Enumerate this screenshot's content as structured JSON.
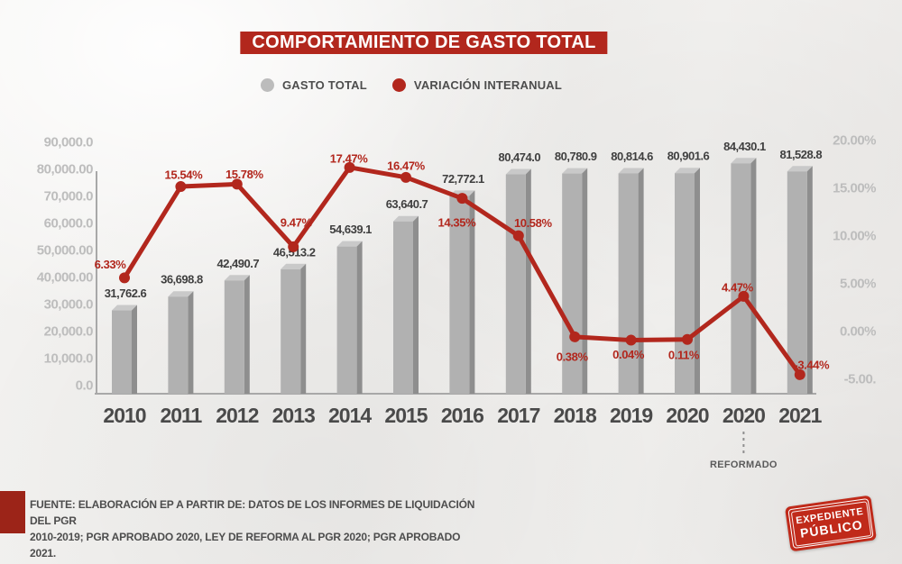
{
  "header": {
    "title": "COMPORTAMIENTO DE GASTO TOTAL",
    "title_bg": "#b2271d",
    "legend": [
      {
        "label": "GASTO TOTAL",
        "color": "#bcbcbc"
      },
      {
        "label": "VARIACIÓN INTERANUAL",
        "color": "#b2271d"
      }
    ]
  },
  "chart_data": {
    "type": "bar+line",
    "title": "COMPORTAMIENTO DE GASTO TOTAL",
    "categories": [
      "2010",
      "2011",
      "2012",
      "2013",
      "2014",
      "2015",
      "2016",
      "2017",
      "2018",
      "2019",
      "2020",
      "2020",
      "2021"
    ],
    "category_note": {
      "category_index": 11,
      "label": "REFORMADO",
      "color": "#5a5a5a"
    },
    "series": [
      {
        "name": "GASTO TOTAL",
        "type": "bar",
        "axis": "left",
        "values": [
          31762.6,
          36698.8,
          42490.7,
          46513.2,
          54639.1,
          63640.7,
          72772.1,
          80474.0,
          80780.9,
          80814.6,
          80901.6,
          84430.1,
          81528.8
        ],
        "value_labels": [
          "31,762.6",
          "36,698.8",
          "42,490.7",
          "46,513.2",
          "54,639.1",
          "63,640.7",
          "72,772.1",
          "80,474.0",
          "80,780.9",
          "80,814.6",
          "80,901.6",
          "84,430.1",
          "81,528.8"
        ],
        "colors": {
          "front": "#b1b1b1",
          "side": "#8e8e8e",
          "top": "#c9c9c9"
        }
      },
      {
        "name": "VARIACIÓN INTERANUAL",
        "type": "line",
        "axis": "right",
        "color": "#b2271d",
        "values": [
          6.33,
          15.54,
          15.78,
          9.47,
          17.47,
          16.47,
          14.35,
          10.58,
          0.38,
          0.04,
          0.11,
          4.47,
          -3.44
        ],
        "value_labels": [
          "6.33%",
          "15.54%",
          "15.78%",
          "9.47%",
          "17.47%",
          "16.47%",
          "14.35%",
          "10.58%",
          "0.38%",
          "0.04%",
          "0.11%",
          "4.47%",
          "-3.44%"
        ],
        "label_offsets": [
          [
            -16,
            -15
          ],
          [
            3,
            -13
          ],
          [
            8,
            -11
          ],
          [
            3,
            -27
          ],
          [
            -1,
            -10
          ],
          [
            0,
            -13
          ],
          [
            -6,
            27
          ],
          [
            16,
            -14
          ],
          [
            -3,
            22
          ],
          [
            -3,
            16
          ],
          [
            -4,
            17
          ],
          [
            -7,
            -10
          ],
          [
            13,
            -11
          ]
        ]
      }
    ],
    "left_axis": {
      "tick_labels": [
        "90,000.0",
        "80,000.00",
        "70,000.0",
        "60,000.0",
        "50,000.00",
        "40,000.00",
        "30,000.0",
        "20,000.0",
        "10,000.0",
        "0.0"
      ],
      "range": [
        0,
        90000
      ]
    },
    "right_axis": {
      "tick_labels": [
        "20.00%",
        "15.00%",
        "10.00%",
        "5.00%",
        "0.00%",
        "-5.00."
      ],
      "range": [
        -5,
        20
      ]
    },
    "grid": false,
    "legend_position": "top",
    "axis_color": "#a8a8a8",
    "tick_color": "#bdbdbd",
    "bar_label_color": "#3f3f3f",
    "year_label_color": "#4a4a4a"
  },
  "footer": {
    "square_color": "#9c2418",
    "text_color": "#4d4d4d",
    "line1": "FUENTE: ELABORACIÓN EP A PARTIR DE: DATOS DE LOS INFORMES DE LIQUIDACIÓN DEL PGR",
    "line2": "2010-2019; PGR APROBADO 2020, LEY DE REFORMA AL PGR 2020; PGR APROBADO 2021."
  },
  "stamp": {
    "bg": "#c02a1a",
    "line1": "EXPEDIENTE",
    "line2": "PÚBLICO"
  }
}
